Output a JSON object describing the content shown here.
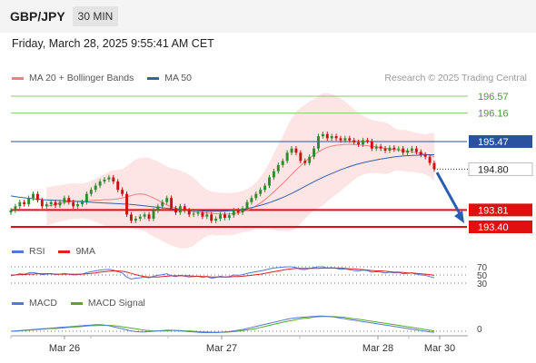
{
  "header": {
    "pair": "GBP/JPY",
    "timeframe": "30 MIN"
  },
  "timestamp": "Friday, March 28, 2025 9:55:41 AM CET",
  "credit": "Research © 2025 Trading Central",
  "colors": {
    "candle_up": "#2e8b2e",
    "candle_down": "#cc1111",
    "ma20": "#f08080",
    "ma50": "#3a5fa8",
    "bollinger_fill": "#fde0e0",
    "resistance": "#8cc870",
    "pivot": "#2a52a0",
    "support": "#e01010",
    "rsi": "#5577dd",
    "rsi_ma": "#dd2222",
    "macd": "#5577dd",
    "macd_signal": "#55aa22",
    "arrow": "#2a5cb0"
  },
  "chart_data": [
    {
      "type": "candlestick",
      "legend": [
        {
          "label": "MA 20 + Bollinger Bands",
          "color": "#f08080"
        },
        {
          "label": "MA 50",
          "color": "#3a5fa8"
        }
      ],
      "x_ticks": [
        "Mar 26",
        "Mar 27",
        "Mar 28",
        "Mar 30"
      ],
      "ylim": [
        193.08,
        196.88
      ],
      "close": [
        193.8,
        193.9,
        194.0,
        193.95,
        194.1,
        194.2,
        194.05,
        193.9,
        193.95,
        194.0,
        193.92,
        194.0,
        194.1,
        194.0,
        193.9,
        193.95,
        194.0,
        194.2,
        194.3,
        194.4,
        194.5,
        194.55,
        194.6,
        194.5,
        194.3,
        194.2,
        193.7,
        193.55,
        193.6,
        193.65,
        193.7,
        193.6,
        193.8,
        193.9,
        194.0,
        194.1,
        193.85,
        193.75,
        193.9,
        193.8,
        193.7,
        193.72,
        193.75,
        193.65,
        193.7,
        193.55,
        193.6,
        193.7,
        193.62,
        193.68,
        193.8,
        193.75,
        193.85,
        194.0,
        194.1,
        194.2,
        194.3,
        194.4,
        194.6,
        194.75,
        194.9,
        195.0,
        195.2,
        195.3,
        195.2,
        195.0,
        194.95,
        195.1,
        195.3,
        195.6,
        195.65,
        195.55,
        195.6,
        195.55,
        195.5,
        195.55,
        195.5,
        195.45,
        195.4,
        195.5,
        195.48,
        195.3,
        195.35,
        195.3,
        195.25,
        195.32,
        195.28,
        195.3,
        195.2,
        195.25,
        195.3,
        195.22,
        195.15,
        195.1,
        194.95,
        194.8
      ],
      "moving_average_20": [
        193.9,
        193.92,
        193.95,
        193.97,
        193.99,
        194.01,
        194.02,
        194.02,
        194.03,
        194.03,
        194.04,
        194.05,
        194.05,
        194.06,
        194.06,
        194.07,
        194.08,
        194.1,
        194.13,
        194.16,
        194.19,
        194.2,
        194.19,
        194.15,
        194.1,
        194.05,
        193.99,
        193.93,
        193.89,
        193.86,
        193.82,
        193.8,
        193.78,
        193.77,
        193.76,
        193.75,
        193.74,
        193.73,
        193.72,
        193.71,
        193.71,
        193.71,
        193.72,
        193.74,
        193.77,
        193.8,
        193.85,
        193.91,
        193.98,
        194.06,
        194.15,
        194.25,
        194.35,
        194.45,
        194.56,
        194.67,
        194.78,
        194.88,
        194.98,
        195.07,
        195.15,
        195.22,
        195.28,
        195.33,
        195.36,
        195.38,
        195.39,
        195.4,
        195.4,
        195.4,
        195.39,
        195.38,
        195.37,
        195.35,
        195.34,
        195.32,
        195.31,
        195.29,
        195.28,
        195.26,
        195.25,
        195.24,
        195.22,
        195.2,
        195.18,
        195.16,
        195.14,
        195.1
      ],
      "moving_average_50": [
        194.15,
        194.12,
        194.1,
        194.08,
        194.06,
        194.05,
        194.04,
        194.03,
        194.02,
        194.01,
        194.0,
        193.99,
        193.98,
        193.97,
        193.96,
        193.95,
        193.93,
        193.91,
        193.89,
        193.87,
        193.85,
        193.83,
        193.81,
        193.8,
        193.79,
        193.78,
        193.78,
        193.78,
        193.79,
        193.81,
        193.84,
        193.88,
        193.93,
        193.99,
        194.06,
        194.14,
        194.23,
        194.33,
        194.43,
        194.53,
        194.62,
        194.7,
        194.78,
        194.85,
        194.91,
        194.96,
        195.0,
        195.04,
        195.07,
        195.1,
        195.12,
        195.13,
        195.14,
        195.15,
        195.15
      ],
      "levels": [
        {
          "value": 196.57,
          "label": "196.57",
          "kind": "resistance"
        },
        {
          "value": 196.16,
          "label": "196.16",
          "kind": "resistance"
        },
        {
          "value": 195.47,
          "label": "195.47",
          "kind": "pivot"
        },
        {
          "value": 194.8,
          "label": "194.80",
          "kind": "last"
        },
        {
          "value": 193.81,
          "label": "193.81",
          "kind": "support"
        },
        {
          "value": 193.4,
          "label": "193.40",
          "kind": "support"
        }
      ],
      "forecast_arrow": {
        "from": 194.72,
        "to": 193.4
      }
    },
    {
      "type": "line",
      "legend": [
        {
          "label": "RSI",
          "color": "#5577dd"
        },
        {
          "label": "9MA",
          "color": "#dd2222"
        }
      ],
      "y_ticks": [
        "70",
        "50",
        "30"
      ],
      "ylim": [
        20,
        80
      ],
      "rsi": [
        48,
        50,
        53,
        52,
        55,
        56,
        54,
        51,
        52,
        53,
        51,
        52,
        54,
        52,
        50,
        51,
        52,
        56,
        58,
        60,
        62,
        63,
        64,
        62,
        58,
        55,
        45,
        40,
        42,
        43,
        45,
        43,
        47,
        49,
        51,
        53,
        48,
        46,
        49,
        47,
        45,
        46,
        47,
        44,
        46,
        42,
        44,
        47,
        45,
        46,
        50,
        49,
        51,
        54,
        56,
        58,
        60,
        62,
        65,
        67,
        68,
        69,
        70,
        70,
        68,
        64,
        63,
        66,
        68,
        70,
        70,
        67,
        68,
        66,
        64,
        65,
        63,
        61,
        60,
        62,
        61,
        57,
        58,
        57,
        55,
        57,
        55,
        56,
        53,
        54,
        55,
        52,
        50,
        49,
        46,
        43
      ],
      "rsi_ma": [
        50,
        50,
        51,
        51,
        52,
        52,
        53,
        53,
        53,
        53,
        52,
        52,
        52,
        52,
        52,
        52,
        52,
        53,
        54,
        55,
        57,
        58,
        59,
        60,
        60,
        59,
        57,
        54,
        51,
        48,
        46,
        45,
        45,
        45,
        46,
        47,
        48,
        48,
        48,
        48,
        48,
        47,
        47,
        46,
        46,
        45,
        45,
        45,
        45,
        45,
        46,
        46,
        47,
        48,
        49,
        51,
        52,
        54,
        56,
        58,
        60,
        62,
        64,
        65,
        66,
        66,
        66,
        66,
        66,
        66,
        67,
        67,
        67,
        67,
        67,
        66,
        65,
        65,
        64,
        63,
        62,
        61,
        60,
        60,
        59,
        58,
        57,
        57,
        56,
        55,
        55,
        54,
        53,
        52,
        51,
        49
      ]
    },
    {
      "type": "line",
      "legend": [
        {
          "label": "MACD",
          "color": "#5577dd"
        },
        {
          "label": "MACD Signal",
          "color": "#55aa22"
        }
      ],
      "y_ticks": [
        "0"
      ],
      "ylim": [
        -0.2,
        0.6
      ],
      "macd": [
        0.0,
        0.01,
        0.02,
        0.03,
        0.04,
        0.05,
        0.06,
        0.07,
        0.08,
        0.09,
        0.1,
        0.11,
        0.12,
        0.13,
        0.14,
        0.15,
        0.16,
        0.17,
        0.18,
        0.19,
        0.19,
        0.18,
        0.16,
        0.13,
        0.1,
        0.07,
        0.04,
        0.01,
        -0.01,
        -0.02,
        -0.02,
        -0.01,
        0.0,
        0.01,
        0.02,
        0.03,
        0.03,
        0.02,
        0.01,
        0.0,
        -0.01,
        -0.02,
        -0.03,
        -0.04,
        -0.04,
        -0.04,
        -0.04,
        -0.03,
        -0.02,
        -0.01,
        0.01,
        0.03,
        0.05,
        0.08,
        0.11,
        0.14,
        0.17,
        0.2,
        0.23,
        0.26,
        0.29,
        0.32,
        0.35,
        0.37,
        0.39,
        0.4,
        0.41,
        0.42,
        0.43,
        0.44,
        0.44,
        0.43,
        0.42,
        0.4,
        0.38,
        0.36,
        0.34,
        0.32,
        0.3,
        0.28,
        0.26,
        0.24,
        0.22,
        0.2,
        0.18,
        0.16,
        0.14,
        0.12,
        0.1,
        0.08,
        0.06,
        0.04,
        0.02,
        0.0,
        -0.02,
        -0.03
      ],
      "signal": [
        0.0,
        0.0,
        0.01,
        0.02,
        0.03,
        0.04,
        0.05,
        0.06,
        0.07,
        0.08,
        0.08,
        0.09,
        0.1,
        0.11,
        0.12,
        0.13,
        0.14,
        0.15,
        0.16,
        0.16,
        0.17,
        0.17,
        0.17,
        0.16,
        0.15,
        0.13,
        0.11,
        0.09,
        0.07,
        0.05,
        0.03,
        0.02,
        0.01,
        0.01,
        0.01,
        0.01,
        0.02,
        0.02,
        0.02,
        0.01,
        0.01,
        0.0,
        -0.01,
        -0.02,
        -0.02,
        -0.03,
        -0.03,
        -0.03,
        -0.03,
        -0.02,
        -0.01,
        0.0,
        0.02,
        0.04,
        0.06,
        0.08,
        0.11,
        0.14,
        0.17,
        0.2,
        0.23,
        0.26,
        0.29,
        0.31,
        0.34,
        0.36,
        0.38,
        0.39,
        0.41,
        0.42,
        0.43,
        0.43,
        0.43,
        0.42,
        0.41,
        0.4,
        0.38,
        0.36,
        0.35,
        0.33,
        0.31,
        0.29,
        0.27,
        0.25,
        0.23,
        0.21,
        0.19,
        0.17,
        0.15,
        0.13,
        0.11,
        0.09,
        0.07,
        0.05,
        0.03,
        0.01
      ]
    }
  ]
}
